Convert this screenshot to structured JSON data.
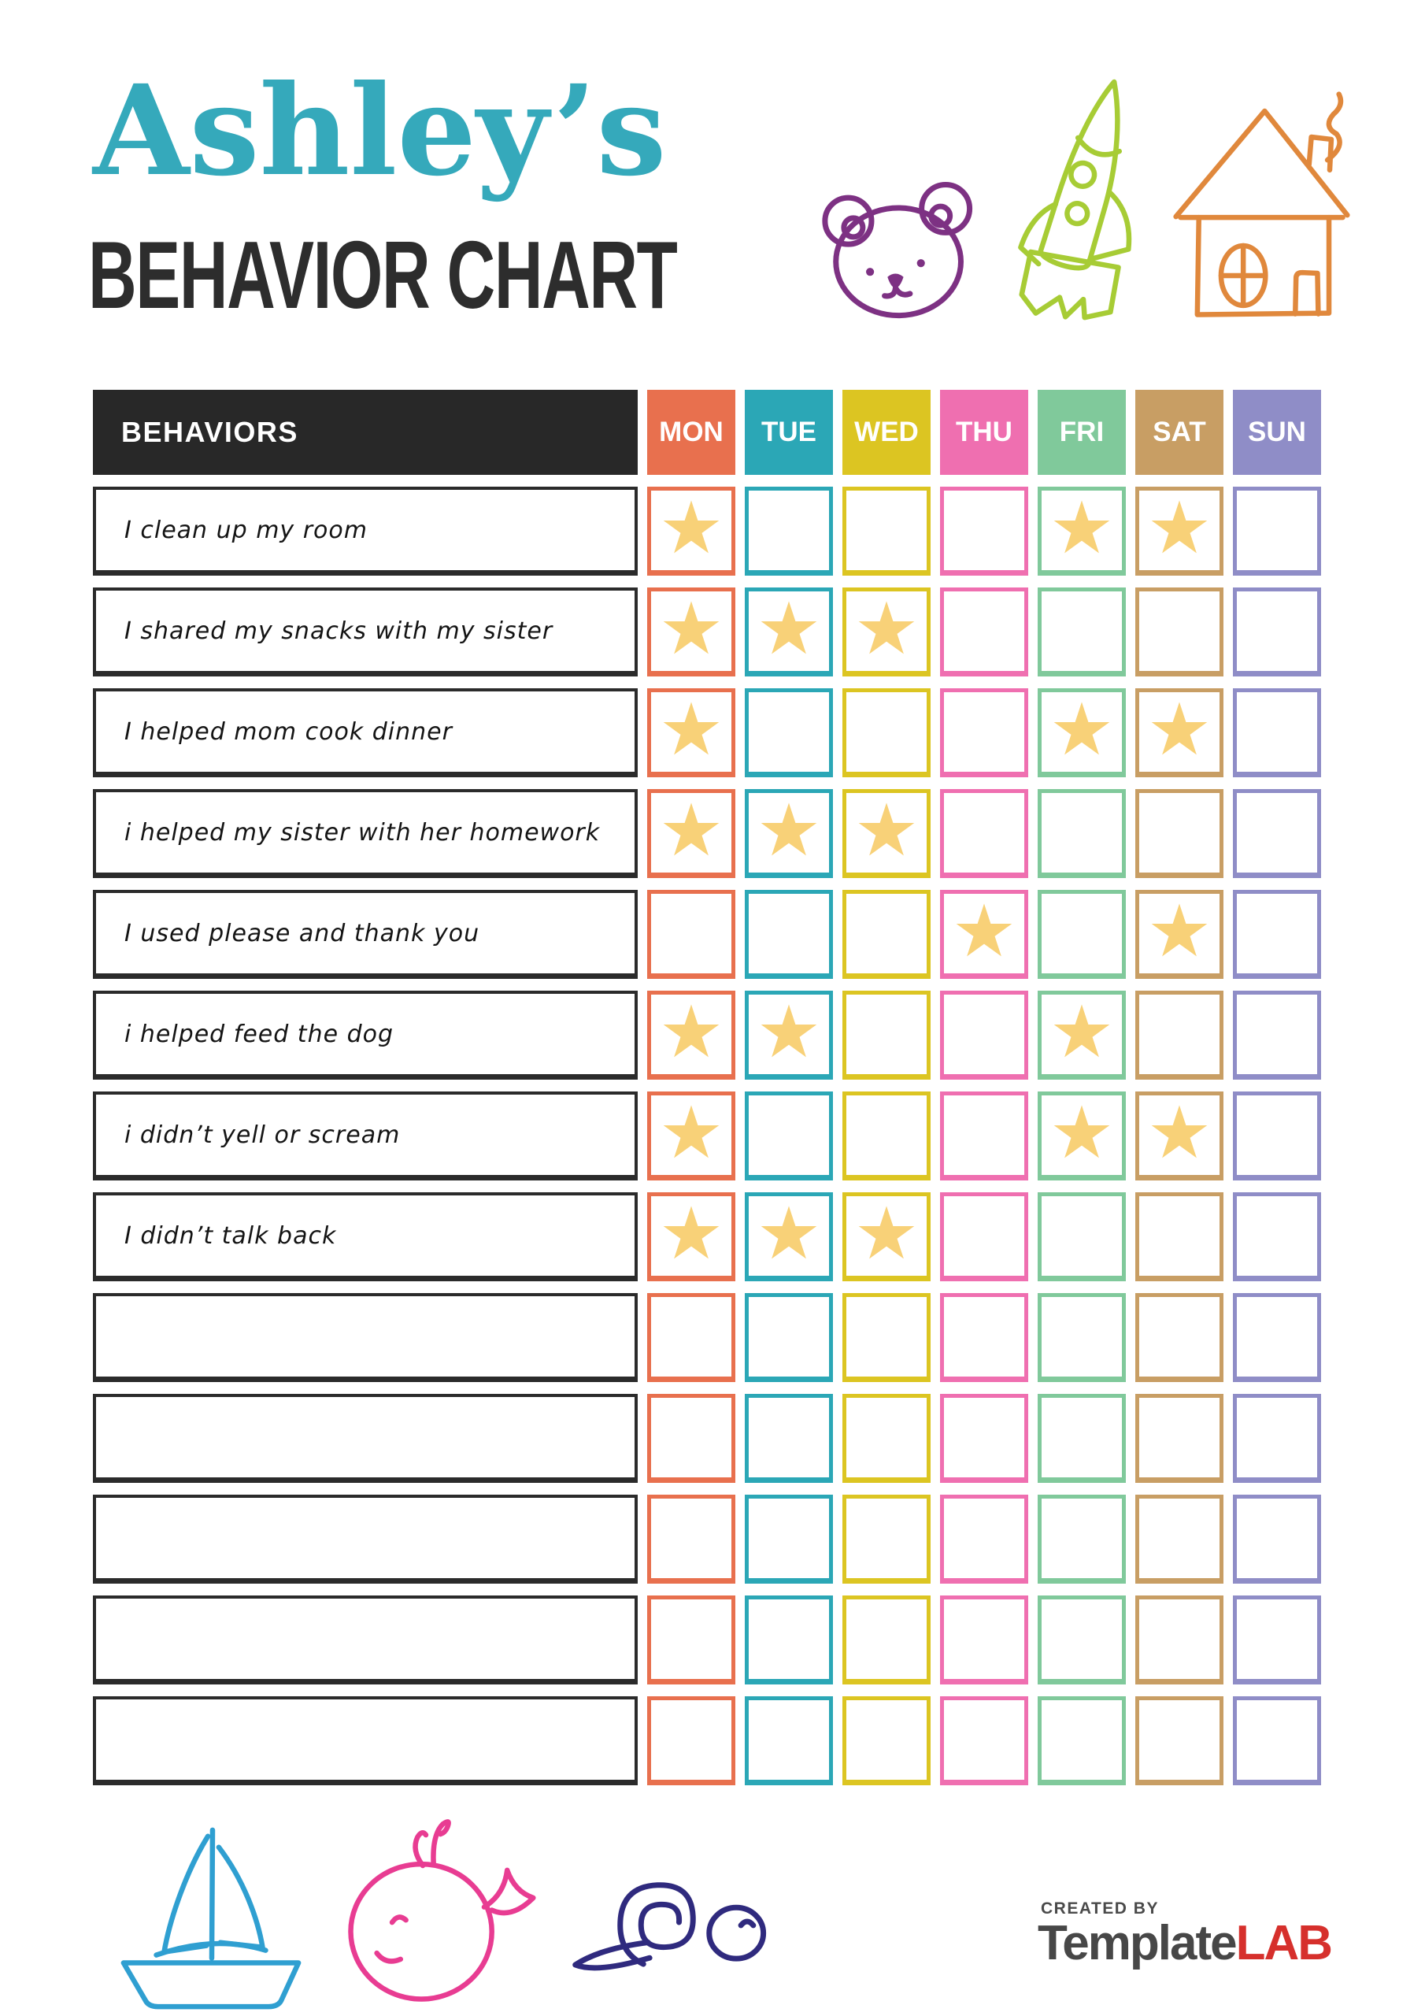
{
  "header": {
    "owner_name": "Ashley’s",
    "title": "BEHAVIOR CHART"
  },
  "table": {
    "behaviors_header": "BEHAVIORS",
    "star_glyph": "★",
    "star_color": "#f8d178",
    "days": [
      {
        "label": "MON",
        "color": "#e8704e"
      },
      {
        "label": "TUE",
        "color": "#2ba7b6"
      },
      {
        "label": "WED",
        "color": "#dcc522"
      },
      {
        "label": "THU",
        "color": "#ef6fb0"
      },
      {
        "label": "FRI",
        "color": "#80c99b"
      },
      {
        "label": "SAT",
        "color": "#c89e64"
      },
      {
        "label": "SUN",
        "color": "#8f8dc7"
      }
    ],
    "rows": [
      {
        "behavior": "I clean up my room",
        "stars": [
          "MON",
          "FRI",
          "SAT"
        ]
      },
      {
        "behavior": "I shared my snacks with my sister",
        "stars": [
          "MON",
          "TUE",
          "WED"
        ]
      },
      {
        "behavior": "I helped mom cook dinner",
        "stars": [
          "MON",
          "FRI",
          "SAT"
        ]
      },
      {
        "behavior": "i helped my sister with her homework",
        "stars": [
          "MON",
          "TUE",
          "WED"
        ]
      },
      {
        "behavior": "I used please and thank you",
        "stars": [
          "THU",
          "SAT"
        ]
      },
      {
        "behavior": "i helped feed the dog",
        "stars": [
          "MON",
          "TUE",
          "FRI"
        ]
      },
      {
        "behavior": "i didn’t yell or scream",
        "stars": [
          "MON",
          "FRI",
          "SAT"
        ]
      },
      {
        "behavior": "I didn’t talk back",
        "stars": [
          "MON",
          "TUE",
          "WED"
        ]
      },
      {
        "behavior": "",
        "stars": []
      },
      {
        "behavior": "",
        "stars": []
      },
      {
        "behavior": "",
        "stars": []
      },
      {
        "behavior": "",
        "stars": []
      },
      {
        "behavior": "",
        "stars": []
      }
    ]
  },
  "decor": {
    "title_color": "#35a9bb",
    "bear_color": "#7d3183",
    "rocket_color": "#a7cc35",
    "house_color": "#e0883c",
    "sailboat_color": "#2f9fd1",
    "whale_color": "#e83c92",
    "snail_color": "#2f2a7e"
  },
  "footer": {
    "created_by": "CREATED BY",
    "brand_name": "Template",
    "brand_suffix": "LAB",
    "brand_name_color": "#474747",
    "brand_suffix_color": "#d6302c"
  }
}
